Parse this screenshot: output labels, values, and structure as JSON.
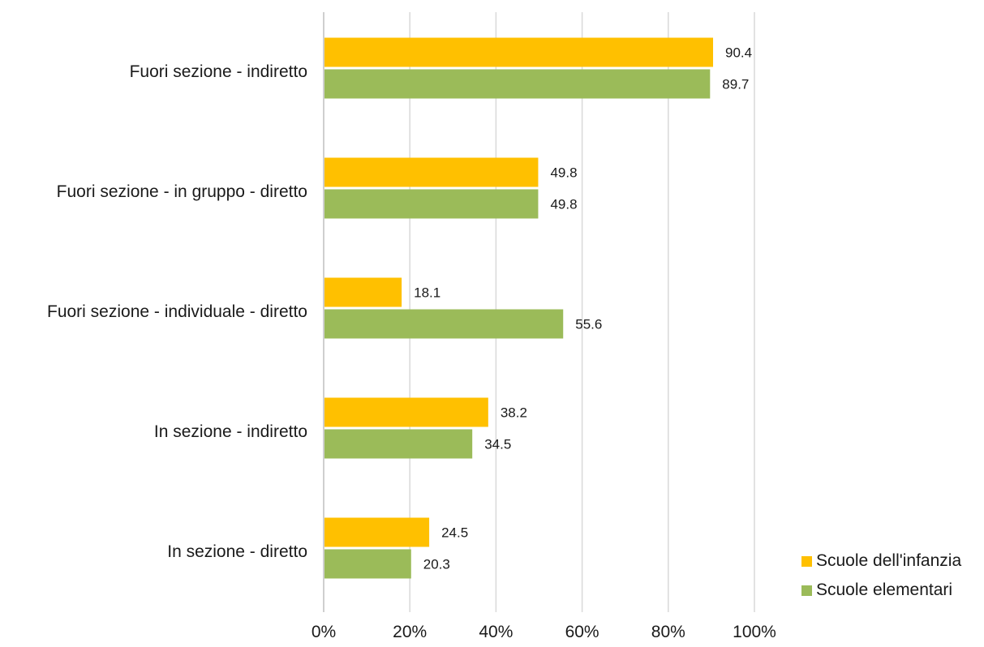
{
  "chart_data": {
    "type": "bar",
    "orientation": "horizontal",
    "categories": [
      "Fuori sezione - indiretto",
      "Fuori sezione - in gruppo - diretto",
      "Fuori sezione - individuale - diretto",
      "In sezione - indiretto",
      "In sezione - diretto"
    ],
    "series": [
      {
        "name": "Scuole dell'infanzia",
        "values": [
          90.4,
          49.8,
          18.1,
          38.2,
          24.5
        ],
        "color": "#ffc000"
      },
      {
        "name": "Scuole elementari",
        "values": [
          89.7,
          49.8,
          55.6,
          34.5,
          20.3
        ],
        "color": "#9bbb59"
      }
    ],
    "data_labels": [
      [
        "90.4",
        "49.8",
        "18.1",
        "38.2",
        "24.5"
      ],
      [
        "89.7",
        "49.8",
        "55.6",
        "34.5",
        "20.3"
      ]
    ],
    "xlim": [
      0,
      100
    ],
    "xticks": [
      "0%",
      "20%",
      "40%",
      "60%",
      "80%",
      "100%"
    ],
    "grid": "vertical",
    "legend_position": "bottom-right"
  }
}
